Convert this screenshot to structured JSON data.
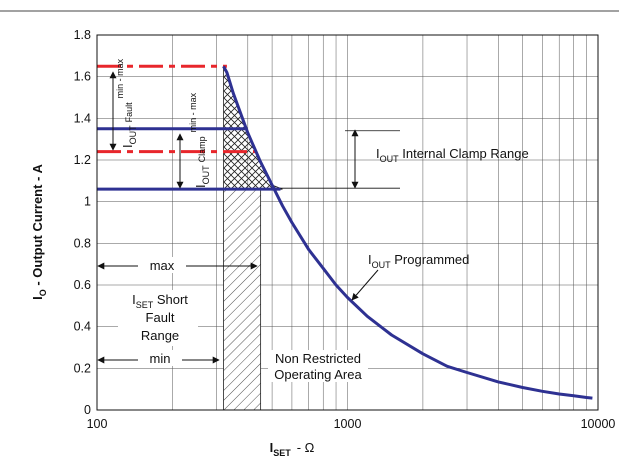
{
  "chart_data": {
    "type": "line",
    "title": "",
    "xlabel": {
      "main": "I",
      "sub": "SET",
      "unit": "- Ω"
    },
    "ylabel": {
      "main": "I",
      "sub": "O",
      "rest": " - Output Current - A"
    },
    "xscale": "log",
    "xlim": [
      100,
      10000
    ],
    "ylim": [
      0,
      1.8
    ],
    "grid": true,
    "x_tick_labels": [
      "100",
      "1000",
      "10000"
    ],
    "y_tick_labels": [
      "0",
      "0.2",
      "0.4",
      "0.6",
      "0.8",
      "1",
      "1.2",
      "1.4",
      "1.6",
      "1.8"
    ],
    "series": [
      {
        "name": "IOUT Programmed",
        "x": [
          320,
          330,
          350,
          400,
          450,
          500,
          550,
          600,
          700,
          800,
          900,
          1000,
          1200,
          1500,
          2000,
          2500,
          3000,
          4000,
          5000,
          6000,
          7000,
          8000,
          9000,
          9500
        ],
        "y": [
          1.65,
          1.62,
          1.52,
          1.33,
          1.19,
          1.08,
          0.98,
          0.9,
          0.77,
          0.68,
          0.6,
          0.54,
          0.45,
          0.36,
          0.27,
          0.21,
          0.18,
          0.135,
          0.108,
          0.09,
          0.077,
          0.068,
          0.06,
          0.057
        ]
      }
    ],
    "reference_lines": {
      "fault_max": 1.65,
      "fault_min": 1.24,
      "clamp_max": 1.35,
      "clamp_min": 1.06
    },
    "short_fault_range": {
      "min": 320,
      "max": 450
    },
    "colors": {
      "programmed": "#2e3192",
      "fault": "#e8262b",
      "clamp": "#2e3192",
      "grid": "#555555",
      "text": "#111111"
    },
    "annotations": {
      "iout_fault": {
        "main": "I",
        "sub": "OUT",
        "mid": "Fault",
        "rest": "min - max"
      },
      "iout_clamp": {
        "main": "I",
        "sub": "OUT",
        "mid": "Clamp",
        "rest": "min - max"
      },
      "internal_clamp": {
        "main": "I",
        "sub": "OUT",
        "rest": " Internal Clamp Range"
      },
      "programmed": {
        "main": "I",
        "sub": "OUT",
        "rest": " Programmed"
      },
      "max_label": "max",
      "min_label": "min",
      "short_fault": {
        "main": "I",
        "sub": "SET",
        "rest": " Short",
        "line2": "Fault",
        "line3": "Range"
      },
      "non_restricted": {
        "line1": "Non Restricted",
        "line2": "Operating Area"
      }
    }
  }
}
